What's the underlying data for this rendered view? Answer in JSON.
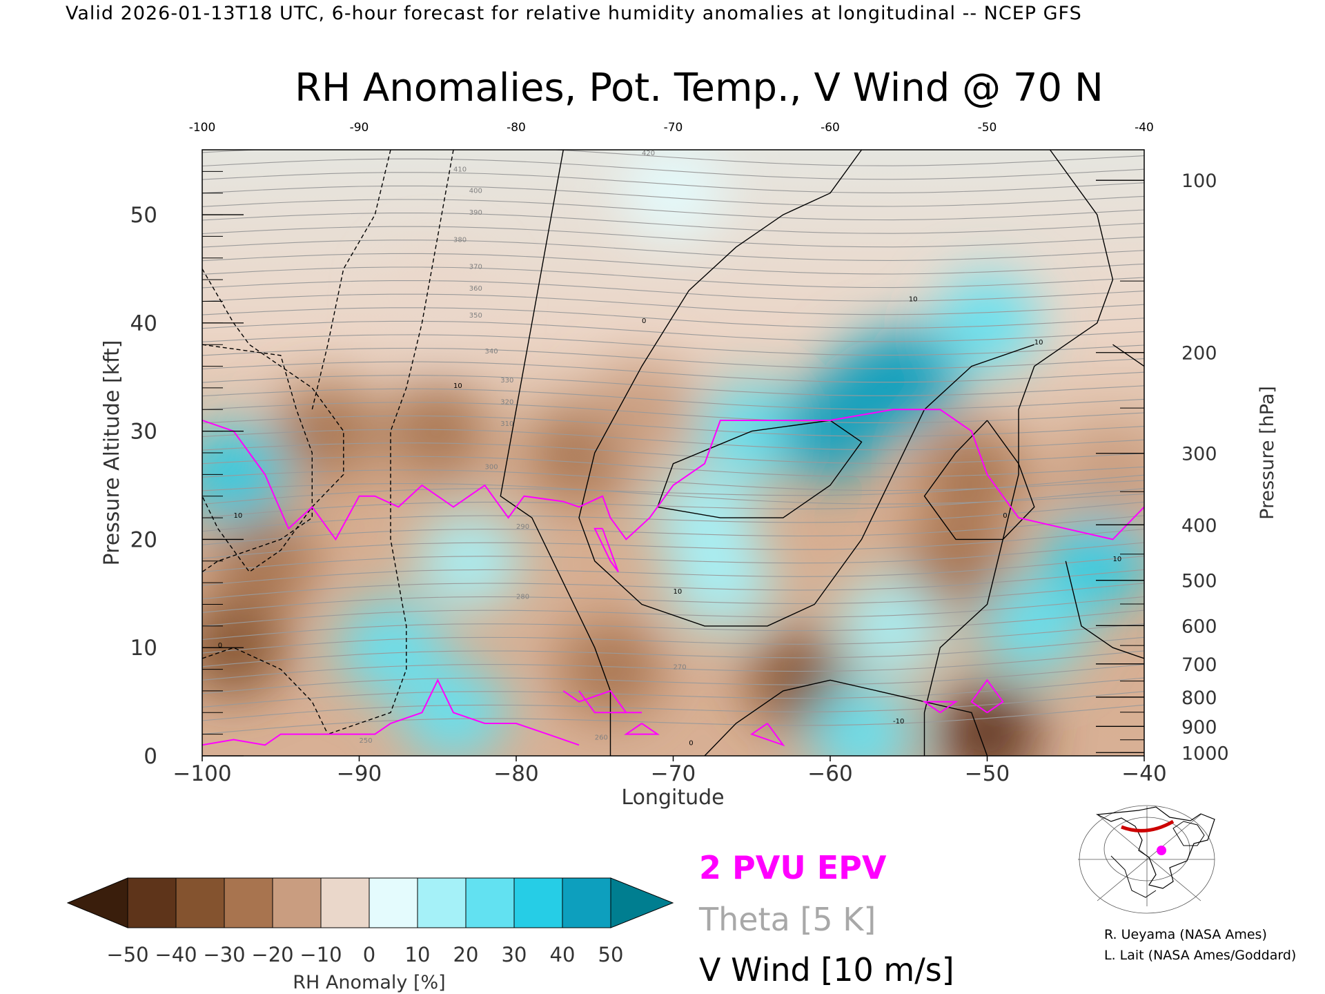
{
  "header": {
    "valid_line": "Valid 2026-01-13T18 UTC, 6-hour forecast for relative humidity anomalies at longitudinal -- NCEP GFS"
  },
  "chart_data": {
    "type": "heatmap",
    "title": "RH Anomalies, Pot. Temp., V Wind @ 70 N",
    "xlabel": "Longitude",
    "ylabel": "Pressure Altitude [kft]",
    "y2label": "Pressure [hPa]",
    "xlim": [
      -100,
      -40
    ],
    "ylim": [
      0,
      56
    ],
    "x_ticks": [
      -100,
      -90,
      -80,
      -70,
      -60,
      -50,
      -40
    ],
    "x_tick_labels": [
      "−100",
      "−90",
      "−80",
      "−70",
      "−60",
      "−50",
      "−40"
    ],
    "top_tick_labels": [
      "-100",
      "-90",
      "-80",
      "-70",
      "-60",
      "-50",
      "-40"
    ],
    "y_ticks": [
      0,
      10,
      20,
      30,
      40,
      50
    ],
    "y_tick_labels": [
      "0",
      "10",
      "20",
      "30",
      "40",
      "50"
    ],
    "pressure_ticks_hpa": [
      100,
      200,
      300,
      400,
      500,
      600,
      700,
      800,
      900,
      1000
    ],
    "pressure_tick_labels": [
      "100",
      "200",
      "300",
      "400",
      "500",
      "600",
      "700",
      "800",
      "900",
      "1000"
    ],
    "colorbar": {
      "label": "RH Anomaly [%]",
      "ticks": [
        -50,
        -40,
        -30,
        -20,
        -10,
        0,
        10,
        20,
        30,
        40,
        50
      ],
      "tick_labels": [
        "−50",
        "−40",
        "−30",
        "−20",
        "−10",
        "0",
        "10",
        "20",
        "30",
        "40",
        "50"
      ],
      "colors": [
        "#3a1e0c",
        "#5e341a",
        "#84532f",
        "#a8744f",
        "#c99d80",
        "#ead7ca",
        "#e4fbfd",
        "#a5f1f8",
        "#62e1f1",
        "#26cde6",
        "#0d9fbe",
        "#007e90"
      ]
    },
    "rh_anomaly_samples": [
      {
        "x": -98,
        "y": 26,
        "v": 30
      },
      {
        "x": -98,
        "y": 10,
        "v": -40
      },
      {
        "x": -96,
        "y": 18,
        "v": -30
      },
      {
        "x": -92,
        "y": 30,
        "v": -30
      },
      {
        "x": -88,
        "y": 10,
        "v": 25
      },
      {
        "x": -85,
        "y": 30,
        "v": -30
      },
      {
        "x": -84,
        "y": 4,
        "v": 25
      },
      {
        "x": -83,
        "y": 18,
        "v": 15
      },
      {
        "x": -76,
        "y": 28,
        "v": -25
      },
      {
        "x": -74,
        "y": 8,
        "v": -25
      },
      {
        "x": -72,
        "y": 32,
        "v": -20
      },
      {
        "x": -68,
        "y": 22,
        "v": 15
      },
      {
        "x": -67,
        "y": 16,
        "v": 10
      },
      {
        "x": -65,
        "y": 30,
        "v": 25
      },
      {
        "x": -60,
        "y": 30,
        "v": 40
      },
      {
        "x": -57,
        "y": 34,
        "v": 45
      },
      {
        "x": -55,
        "y": 35,
        "v": 40
      },
      {
        "x": -62,
        "y": 7,
        "v": -40
      },
      {
        "x": -58,
        "y": 2,
        "v": 25
      },
      {
        "x": -56,
        "y": 12,
        "v": 10
      },
      {
        "x": -52,
        "y": 18,
        "v": -30
      },
      {
        "x": -51,
        "y": 26,
        "v": -25
      },
      {
        "x": -50,
        "y": 2,
        "v": -45
      },
      {
        "x": -47,
        "y": 12,
        "v": 20
      },
      {
        "x": -43,
        "y": 18,
        "v": 35
      },
      {
        "x": -42,
        "y": 26,
        "v": -15
      },
      {
        "x": -70,
        "y": 52,
        "v": 5
      },
      {
        "x": -85,
        "y": 42,
        "v": -10
      },
      {
        "x": -50,
        "y": 40,
        "v": 20
      }
    ],
    "theta_contour_labels": [
      "250",
      "260",
      "270",
      "280",
      "290",
      "300",
      "310",
      "320",
      "330",
      "340",
      "350",
      "360",
      "370",
      "380",
      "390",
      "400",
      "410",
      "420"
    ],
    "vwind_contour_labels": [
      "0",
      "10",
      "-10"
    ],
    "legend": {
      "epv": "2 PVU EPV",
      "theta": "Theta [5 K]",
      "vwind": "V Wind [10 m/s]"
    },
    "colors": {
      "epv": "#ff00ff",
      "theta": "#a0a0a0",
      "vwind": "#000000",
      "transect": "#cc0000"
    }
  },
  "credits": {
    "line1": "R. Ueyama (NASA Ames)",
    "line2": "L. Lait (NASA Ames/Goddard)"
  }
}
